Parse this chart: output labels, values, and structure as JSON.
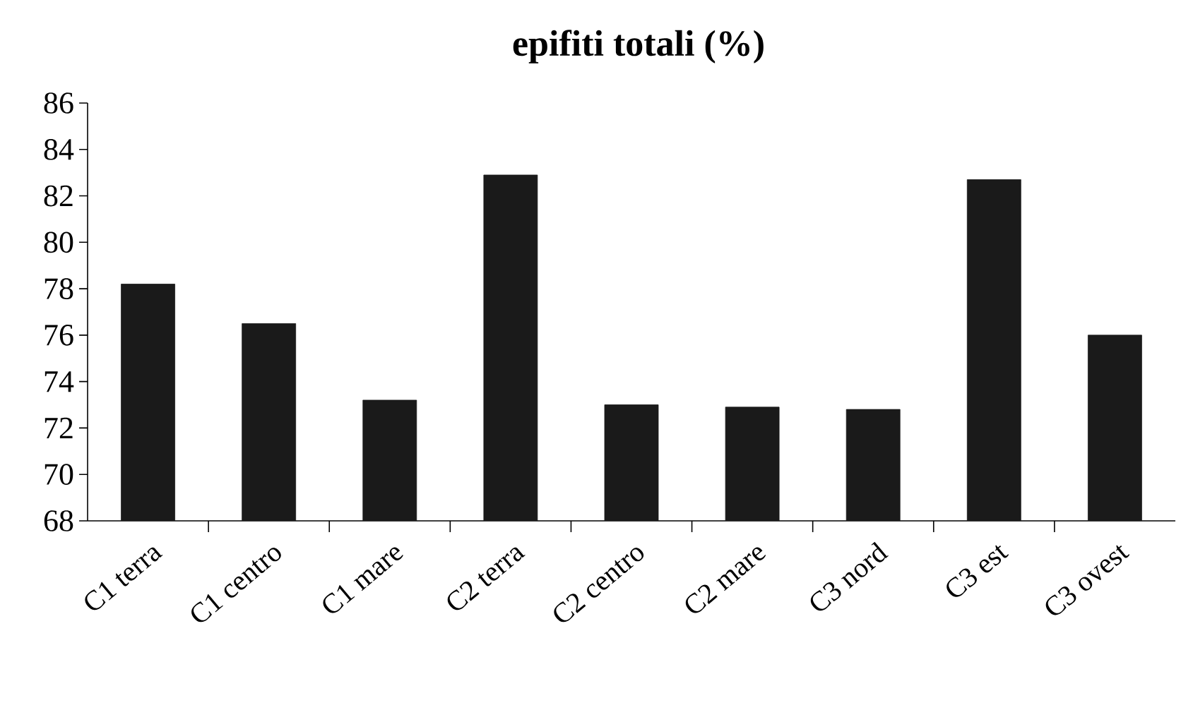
{
  "chart_data": {
    "type": "bar",
    "title": "epifiti totali (%)",
    "categories": [
      "C1 terra",
      "C1 centro",
      "C1 mare",
      "C2 terra",
      "C2 centro",
      "C2 mare",
      "C3 nord",
      "C3 est",
      "C3 ovest"
    ],
    "values": [
      78.2,
      76.5,
      73.2,
      82.9,
      73.0,
      72.9,
      72.8,
      82.7,
      76.0
    ],
    "color": "#1a1a1a",
    "ylim": [
      68,
      86
    ],
    "yticks": [
      68,
      70,
      72,
      74,
      76,
      78,
      80,
      82,
      84,
      86
    ],
    "grid": false
  }
}
